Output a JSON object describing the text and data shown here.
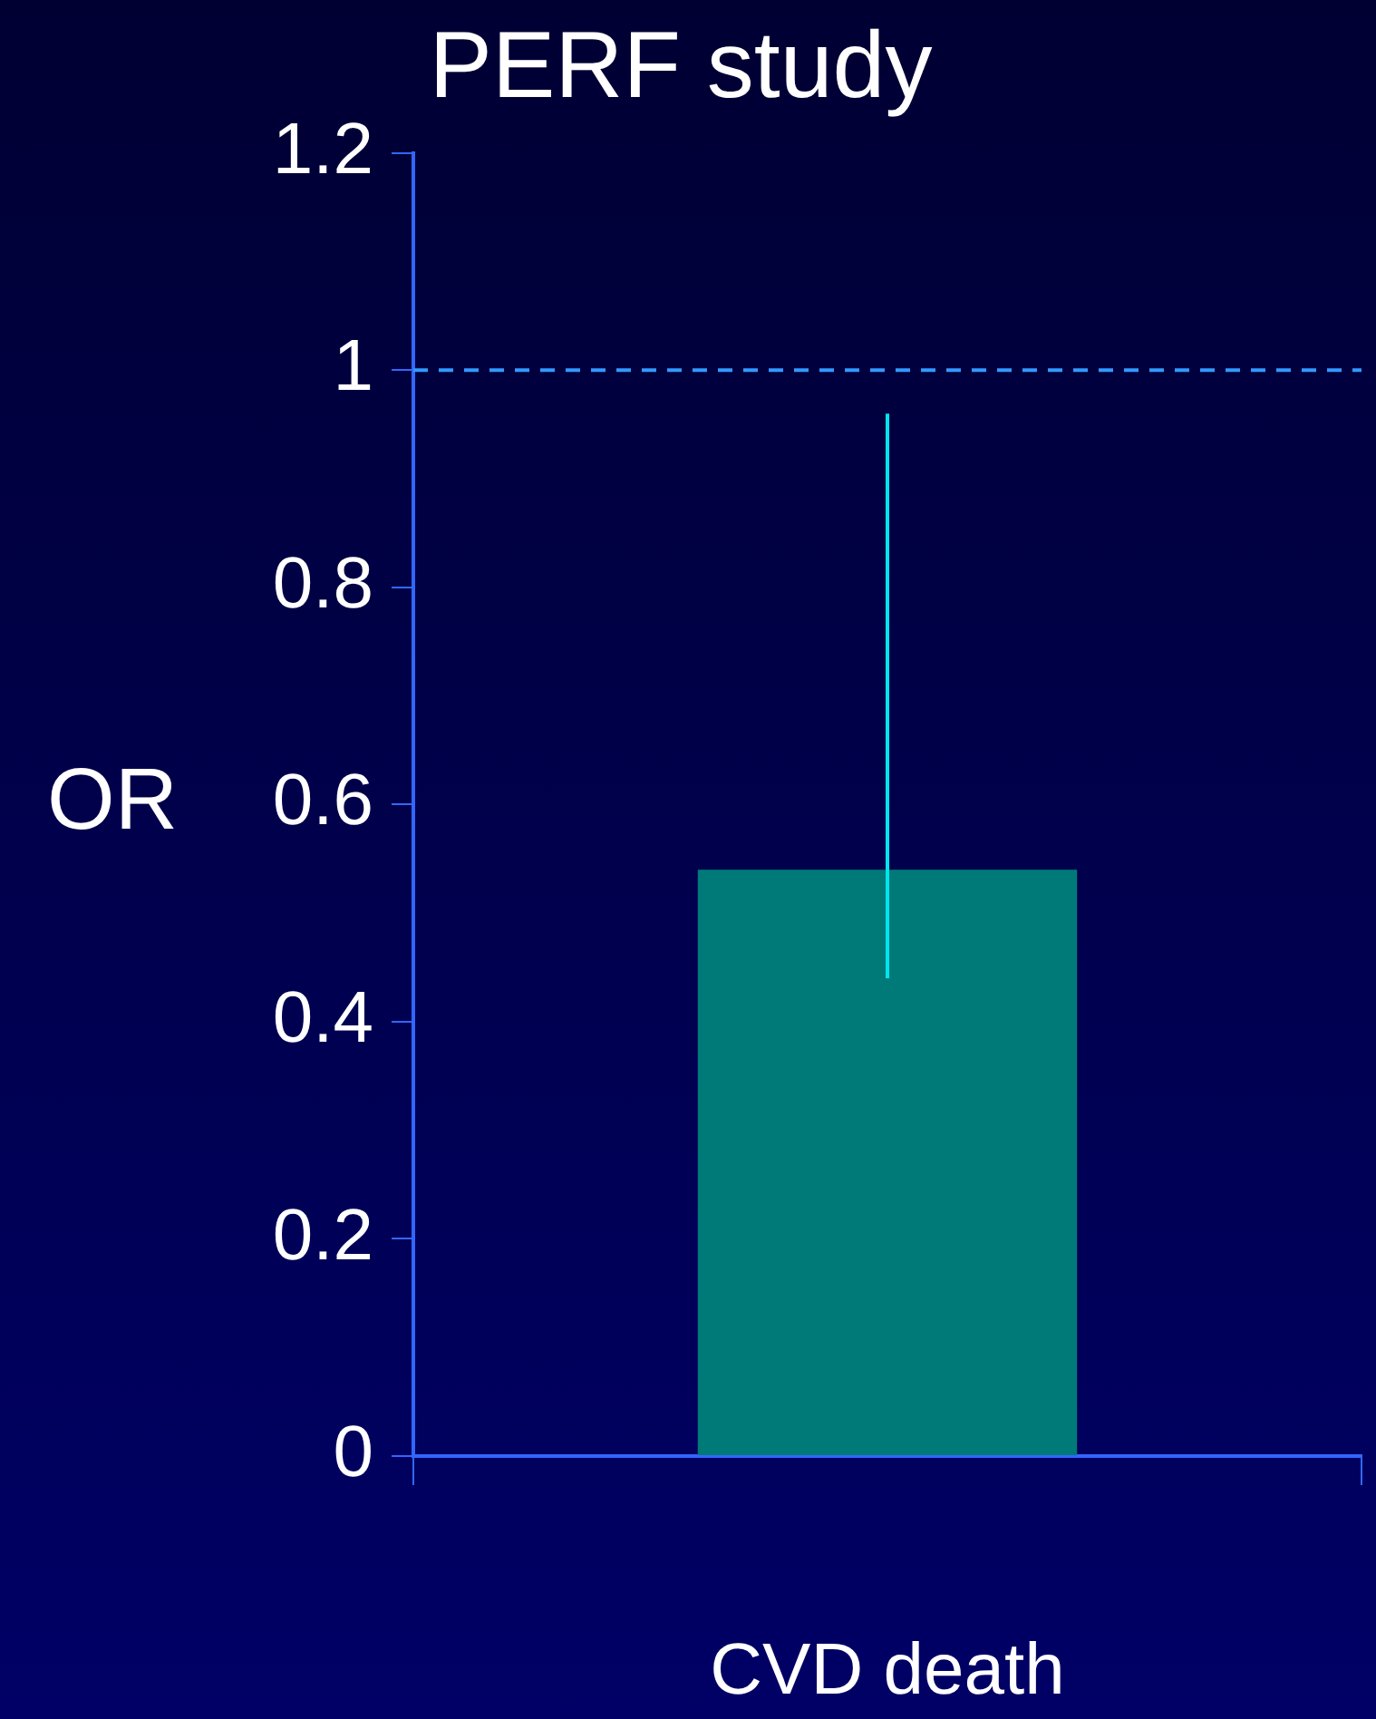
{
  "chart_data": {
    "type": "bar",
    "title": "PERF study",
    "ylabel": "OR",
    "categories": [
      "CVD death"
    ],
    "values": [
      0.54
    ],
    "color": "#007a78",
    "errors": [
      [
        0.44,
        0.96
      ]
    ],
    "ylim": [
      0,
      1.2
    ],
    "yticks": [
      0,
      0.2,
      0.4,
      0.6,
      0.8,
      1,
      1.2
    ],
    "ref_lines": [
      {
        "axis": "y",
        "value": 1,
        "color": "#3399ff",
        "line_style": "dashed"
      }
    ],
    "grid": false,
    "legend": false
  }
}
